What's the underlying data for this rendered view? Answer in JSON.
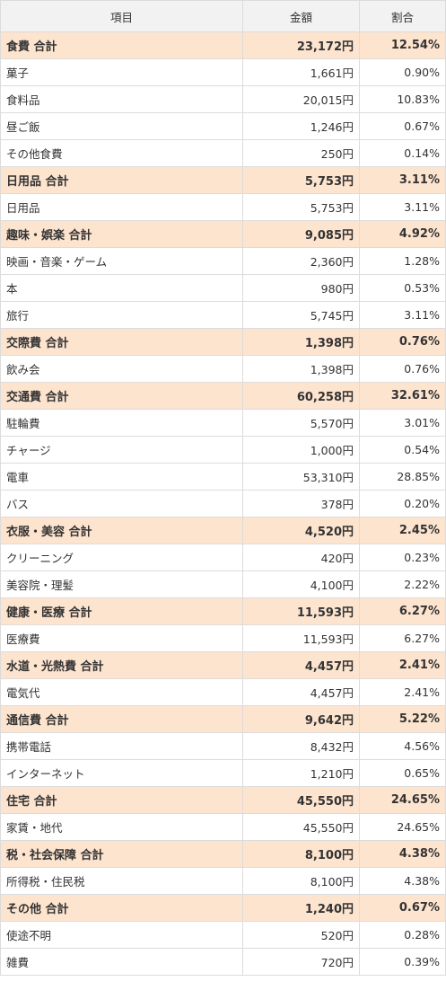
{
  "table": {
    "headers": [
      "項目",
      "金額",
      "割合"
    ],
    "rows": [
      {
        "type": "total",
        "name": "食費 合計",
        "amount": "23,172円",
        "pct": "12.54%"
      },
      {
        "type": "item",
        "name": "菓子",
        "amount": "1,661円",
        "pct": "0.90%"
      },
      {
        "type": "item",
        "name": "食料品",
        "amount": "20,015円",
        "pct": "10.83%"
      },
      {
        "type": "item",
        "name": "昼ご飯",
        "amount": "1,246円",
        "pct": "0.67%"
      },
      {
        "type": "item",
        "name": "その他食費",
        "amount": "250円",
        "pct": "0.14%"
      },
      {
        "type": "total",
        "name": "日用品 合計",
        "amount": "5,753円",
        "pct": "3.11%"
      },
      {
        "type": "item",
        "name": "日用品",
        "amount": "5,753円",
        "pct": "3.11%"
      },
      {
        "type": "total",
        "name": "趣味・娯楽 合計",
        "amount": "9,085円",
        "pct": "4.92%"
      },
      {
        "type": "item",
        "name": "映画・音楽・ゲーム",
        "amount": "2,360円",
        "pct": "1.28%"
      },
      {
        "type": "item",
        "name": "本",
        "amount": "980円",
        "pct": "0.53%"
      },
      {
        "type": "item",
        "name": "旅行",
        "amount": "5,745円",
        "pct": "3.11%"
      },
      {
        "type": "total",
        "name": "交際費 合計",
        "amount": "1,398円",
        "pct": "0.76%"
      },
      {
        "type": "item",
        "name": "飲み会",
        "amount": "1,398円",
        "pct": "0.76%"
      },
      {
        "type": "total",
        "name": "交通費 合計",
        "amount": "60,258円",
        "pct": "32.61%"
      },
      {
        "type": "item",
        "name": "駐輪費",
        "amount": "5,570円",
        "pct": "3.01%"
      },
      {
        "type": "item",
        "name": "チャージ",
        "amount": "1,000円",
        "pct": "0.54%"
      },
      {
        "type": "item",
        "name": "電車",
        "amount": "53,310円",
        "pct": "28.85%"
      },
      {
        "type": "item",
        "name": "バス",
        "amount": "378円",
        "pct": "0.20%"
      },
      {
        "type": "total",
        "name": "衣服・美容 合計",
        "amount": "4,520円",
        "pct": "2.45%"
      },
      {
        "type": "item",
        "name": "クリーニング",
        "amount": "420円",
        "pct": "0.23%"
      },
      {
        "type": "item",
        "name": "美容院・理髪",
        "amount": "4,100円",
        "pct": "2.22%"
      },
      {
        "type": "total",
        "name": "健康・医療 合計",
        "amount": "11,593円",
        "pct": "6.27%"
      },
      {
        "type": "item",
        "name": "医療費",
        "amount": "11,593円",
        "pct": "6.27%"
      },
      {
        "type": "total",
        "name": "水道・光熱費 合計",
        "amount": "4,457円",
        "pct": "2.41%"
      },
      {
        "type": "item",
        "name": "電気代",
        "amount": "4,457円",
        "pct": "2.41%"
      },
      {
        "type": "total",
        "name": "通信費 合計",
        "amount": "9,642円",
        "pct": "5.22%"
      },
      {
        "type": "item",
        "name": "携帯電話",
        "amount": "8,432円",
        "pct": "4.56%"
      },
      {
        "type": "item",
        "name": "インターネット",
        "amount": "1,210円",
        "pct": "0.65%"
      },
      {
        "type": "total",
        "name": "住宅 合計",
        "amount": "45,550円",
        "pct": "24.65%"
      },
      {
        "type": "item",
        "name": "家賃・地代",
        "amount": "45,550円",
        "pct": "24.65%"
      },
      {
        "type": "total",
        "name": "税・社会保障 合計",
        "amount": "8,100円",
        "pct": "4.38%"
      },
      {
        "type": "item",
        "name": "所得税・住民税",
        "amount": "8,100円",
        "pct": "4.38%"
      },
      {
        "type": "total",
        "name": "その他 合計",
        "amount": "1,240円",
        "pct": "0.67%"
      },
      {
        "type": "item",
        "name": "使途不明",
        "amount": "520円",
        "pct": "0.28%"
      },
      {
        "type": "item",
        "name": "雑費",
        "amount": "720円",
        "pct": "0.39%"
      }
    ]
  },
  "colors": {
    "header_bg": "#f2f2f2",
    "total_row_bg": "#fde4cf",
    "border": "#dcdcdc"
  }
}
